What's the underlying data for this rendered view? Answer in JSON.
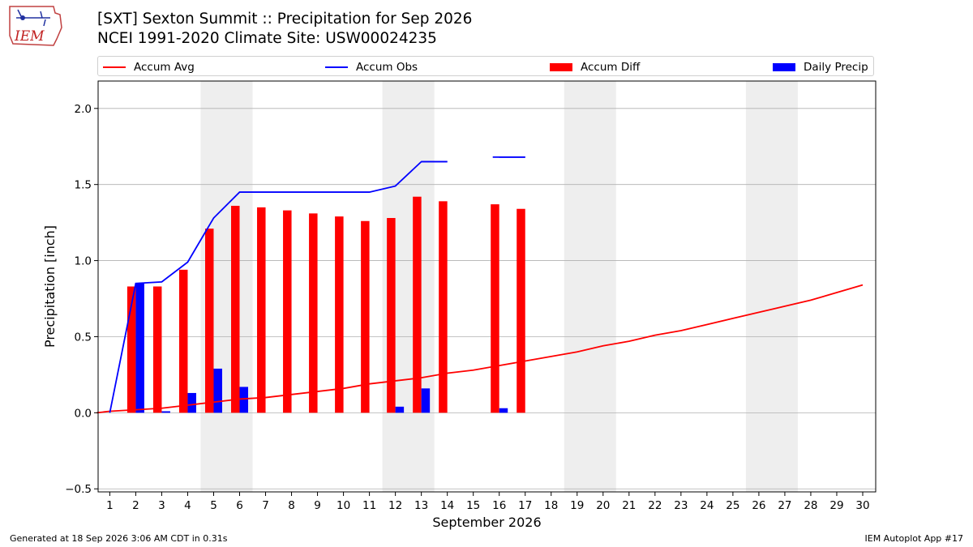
{
  "header": {
    "logo_text": "IEM",
    "title_line1": "[SXT] Sexton Summit :: Precipitation for Sep 2026",
    "title_line2": "NCEI 1991-2020 Climate Site: USW00024235"
  },
  "footer": {
    "generated": "Generated at 18 Sep 2026 3:06 AM CDT in 0.31s",
    "app": "IEM Autoplot App #17"
  },
  "colors": {
    "accum_avg": "#ff0000",
    "accum_obs": "#0000ff",
    "accum_diff": "#ff0000",
    "daily_precip": "#0000ff",
    "weekend_shade": "#eeeeee",
    "grid": "#b0b0b0"
  },
  "chart_data": {
    "type": "bar",
    "title": "[SXT] Sexton Summit :: Precipitation for Sep 2026",
    "subtitle": "NCEI 1991-2020 Climate Site: USW00024235",
    "xlabel": "September 2026",
    "ylabel": "Precipitation [inch]",
    "x": [
      1,
      2,
      3,
      4,
      5,
      6,
      7,
      8,
      9,
      10,
      11,
      12,
      13,
      14,
      15,
      16,
      17,
      18,
      19,
      20,
      21,
      22,
      23,
      24,
      25,
      26,
      27,
      28,
      29,
      30
    ],
    "xticks": [
      "1",
      "2",
      "3",
      "4",
      "5",
      "6",
      "7",
      "8",
      "9",
      "10",
      "11",
      "12",
      "13",
      "14",
      "15",
      "16",
      "17",
      "18",
      "19",
      "20",
      "21",
      "22",
      "23",
      "24",
      "25",
      "26",
      "27",
      "28",
      "29",
      "30"
    ],
    "ylim": [
      -0.52,
      2.18
    ],
    "yticks": [
      -0.5,
      0.0,
      0.5,
      1.0,
      1.5,
      2.0
    ],
    "ytick_labels": [
      "−0.5",
      "0.0",
      "0.5",
      "1.0",
      "1.5",
      "2.0"
    ],
    "grid": "horizontal",
    "legend_position": "top",
    "shaded_day_ranges": [
      [
        4.5,
        6.5
      ],
      [
        11.5,
        13.5
      ],
      [
        18.5,
        20.5
      ],
      [
        25.5,
        27.5
      ]
    ],
    "series": [
      {
        "name": "Accum Avg",
        "kind": "line",
        "x": [
          0.5,
          1,
          2,
          3,
          4,
          5,
          6,
          7,
          8,
          9,
          10,
          11,
          12,
          13,
          14,
          15,
          16,
          17,
          18,
          19,
          20,
          21,
          22,
          23,
          24,
          25,
          26,
          27,
          28,
          29,
          30
        ],
        "values": [
          0.0,
          0.01,
          0.02,
          0.03,
          0.05,
          0.07,
          0.09,
          0.1,
          0.12,
          0.14,
          0.16,
          0.19,
          0.21,
          0.23,
          0.26,
          0.28,
          0.31,
          0.34,
          0.37,
          0.4,
          0.44,
          0.47,
          0.51,
          0.54,
          0.58,
          0.62,
          0.66,
          0.7,
          0.74,
          0.79,
          0.84
        ]
      },
      {
        "name": "Accum Obs",
        "kind": "line",
        "x": [
          1,
          2,
          3,
          4,
          5,
          6,
          7,
          8,
          9,
          10,
          11,
          12,
          13,
          14,
          null,
          16,
          17
        ],
        "values": [
          0.0,
          0.85,
          0.86,
          0.99,
          1.28,
          1.45,
          1.45,
          1.45,
          1.45,
          1.45,
          1.45,
          1.49,
          1.65,
          1.65,
          null,
          1.68,
          1.68
        ]
      },
      {
        "name": "Accum Diff",
        "kind": "bar",
        "x": [
          2,
          3,
          4,
          5,
          6,
          7,
          8,
          9,
          10,
          11,
          12,
          13,
          14,
          16,
          17
        ],
        "values": [
          0.83,
          0.83,
          0.94,
          1.21,
          1.36,
          1.35,
          1.33,
          1.31,
          1.29,
          1.26,
          1.28,
          1.42,
          1.39,
          1.37,
          1.34
        ]
      },
      {
        "name": "Daily Precip",
        "kind": "bar",
        "x": [
          2,
          3,
          4,
          5,
          6,
          12,
          13,
          16
        ],
        "values": [
          0.85,
          0.01,
          0.13,
          0.29,
          0.17,
          0.04,
          0.16,
          0.03
        ]
      }
    ]
  }
}
